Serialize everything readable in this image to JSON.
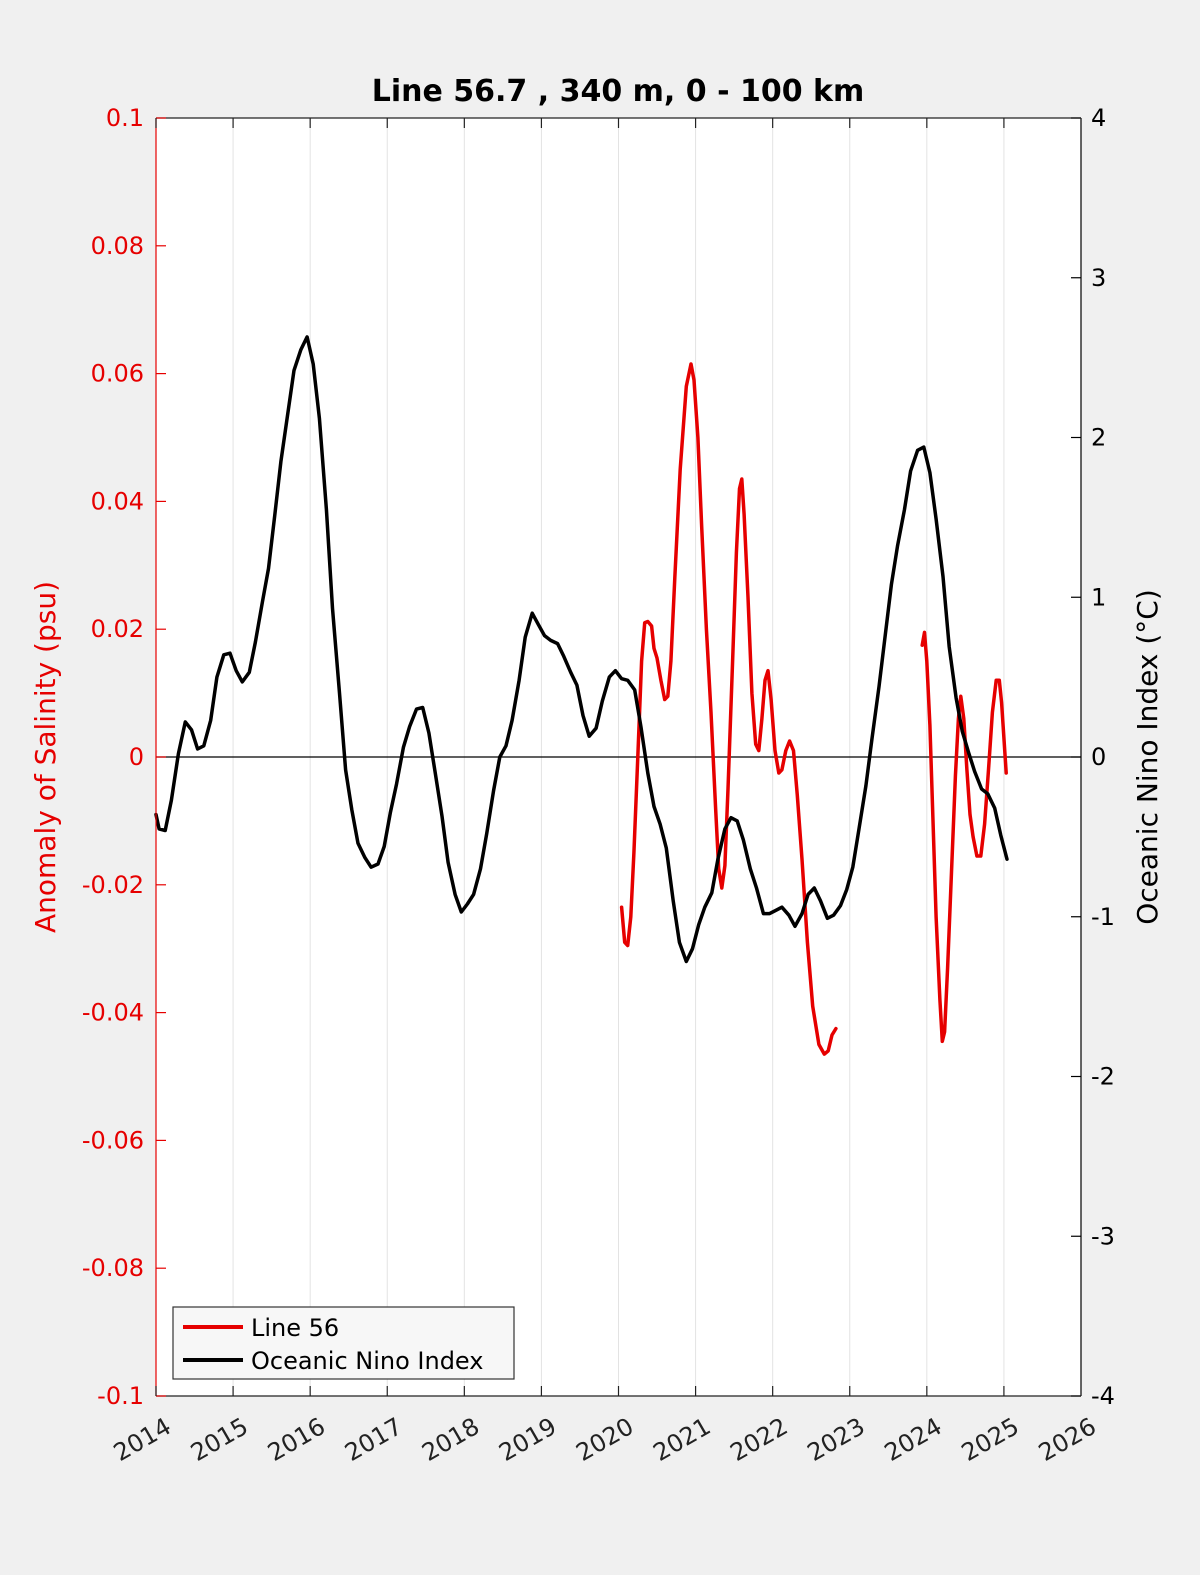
{
  "chart_data": {
    "type": "line",
    "title": "Line 56.7 , 340 m, 0 - 100 km",
    "xlabel": "",
    "ylabel": "Anomaly of Salinity (psu)",
    "y2label": "Oceanic Nino Index (°C)",
    "xlim": [
      2014,
      2026
    ],
    "ylim": [
      -0.1,
      0.1
    ],
    "y2lim": [
      -4,
      4
    ],
    "x_ticks": [
      "2014",
      "2015",
      "2016",
      "2017",
      "2018",
      "2019",
      "2020",
      "2021",
      "2022",
      "2023",
      "2024",
      "2025",
      "2026"
    ],
    "y_ticks": [
      "-0.1",
      "-0.08",
      "-0.06",
      "-0.04",
      "-0.02",
      "0",
      "0.02",
      "0.04",
      "0.06",
      "0.08",
      "0.1"
    ],
    "y2_ticks": [
      "-4",
      "-3",
      "-2",
      "-1",
      "0",
      "1",
      "2",
      "3",
      "4"
    ],
    "grid": "vertical",
    "legend_position": "bottom-left",
    "colors": {
      "salinity": "#e60000",
      "oni": "#000000",
      "background": "#f0f0f0",
      "plot_bg": "#ffffff",
      "grid": "#e3e3e3"
    },
    "series": [
      {
        "name": "Line 56",
        "axis": "left",
        "segments": [
          [
            [
              2020.04,
              -0.0235
            ],
            [
              2020.08,
              -0.029
            ],
            [
              2020.12,
              -0.0295
            ],
            [
              2020.16,
              -0.025
            ],
            [
              2020.2,
              -0.015
            ],
            [
              2020.25,
              0.0
            ],
            [
              2020.3,
              0.015
            ],
            [
              2020.34,
              0.021
            ],
            [
              2020.38,
              0.0212
            ],
            [
              2020.43,
              0.0205
            ],
            [
              2020.46,
              0.017
            ],
            [
              2020.5,
              0.0155
            ],
            [
              2020.55,
              0.012
            ],
            [
              2020.6,
              0.009
            ],
            [
              2020.64,
              0.0095
            ],
            [
              2020.68,
              0.015
            ],
            [
              2020.73,
              0.028
            ],
            [
              2020.8,
              0.045
            ],
            [
              2020.88,
              0.058
            ],
            [
              2020.94,
              0.0615
            ],
            [
              2020.98,
              0.059
            ],
            [
              2021.03,
              0.05
            ],
            [
              2021.08,
              0.036
            ],
            [
              2021.14,
              0.02
            ],
            [
              2021.2,
              0.007
            ],
            [
              2021.26,
              -0.008
            ],
            [
              2021.3,
              -0.0175
            ],
            [
              2021.34,
              -0.0205
            ],
            [
              2021.38,
              -0.017
            ],
            [
              2021.42,
              -0.005
            ],
            [
              2021.48,
              0.015
            ],
            [
              2021.53,
              0.032
            ],
            [
              2021.57,
              0.042
            ],
            [
              2021.6,
              0.0435
            ],
            [
              2021.63,
              0.038
            ],
            [
              2021.68,
              0.025
            ],
            [
              2021.73,
              0.01
            ],
            [
              2021.78,
              0.002
            ],
            [
              2021.82,
              0.001
            ],
            [
              2021.86,
              0.006
            ],
            [
              2021.9,
              0.012
            ],
            [
              2021.94,
              0.0135
            ],
            [
              2021.98,
              0.009
            ],
            [
              2022.03,
              0.001
            ],
            [
              2022.08,
              -0.0025
            ],
            [
              2022.12,
              -0.002
            ],
            [
              2022.17,
              0.001
            ],
            [
              2022.22,
              0.0025
            ],
            [
              2022.27,
              0.001
            ],
            [
              2022.32,
              -0.006
            ],
            [
              2022.38,
              -0.016
            ],
            [
              2022.45,
              -0.029
            ],
            [
              2022.52,
              -0.039
            ],
            [
              2022.6,
              -0.045
            ],
            [
              2022.67,
              -0.0465
            ],
            [
              2022.72,
              -0.046
            ],
            [
              2022.77,
              -0.0435
            ],
            [
              2022.82,
              -0.0425
            ]
          ],
          [
            [
              2023.94,
              0.0175
            ],
            [
              2023.97,
              0.0195
            ],
            [
              2024.0,
              0.015
            ],
            [
              2024.04,
              0.005
            ],
            [
              2024.08,
              -0.01
            ],
            [
              2024.12,
              -0.025
            ],
            [
              2024.17,
              -0.038
            ],
            [
              2024.2,
              -0.0445
            ],
            [
              2024.23,
              -0.043
            ],
            [
              2024.27,
              -0.033
            ],
            [
              2024.32,
              -0.018
            ],
            [
              2024.37,
              -0.003
            ],
            [
              2024.41,
              0.006
            ],
            [
              2024.44,
              0.0095
            ],
            [
              2024.48,
              0.006
            ],
            [
              2024.52,
              -0.002
            ],
            [
              2024.56,
              -0.009
            ],
            [
              2024.6,
              -0.0125
            ],
            [
              2024.65,
              -0.0155
            ],
            [
              2024.7,
              -0.0155
            ],
            [
              2024.75,
              -0.0105
            ],
            [
              2024.8,
              -0.002
            ],
            [
              2024.85,
              0.007
            ],
            [
              2024.9,
              0.012
            ],
            [
              2024.94,
              0.012
            ],
            [
              2024.97,
              0.0085
            ],
            [
              2025.0,
              0.003
            ],
            [
              2025.03,
              -0.0025
            ]
          ]
        ]
      },
      {
        "name": "Oceanic Nino Index",
        "axis": "right",
        "points": [
          [
            2014.0,
            -0.36
          ],
          [
            2014.04,
            -0.45
          ],
          [
            2014.12,
            -0.46
          ],
          [
            2014.2,
            -0.27
          ],
          [
            2014.29,
            0.02
          ],
          [
            2014.38,
            0.22
          ],
          [
            2014.46,
            0.17
          ],
          [
            2014.54,
            0.05
          ],
          [
            2014.62,
            0.07
          ],
          [
            2014.71,
            0.23
          ],
          [
            2014.79,
            0.5
          ],
          [
            2014.88,
            0.64
          ],
          [
            2014.96,
            0.65
          ],
          [
            2015.04,
            0.54
          ],
          [
            2015.12,
            0.47
          ],
          [
            2015.21,
            0.53
          ],
          [
            2015.29,
            0.72
          ],
          [
            2015.38,
            0.97
          ],
          [
            2015.46,
            1.18
          ],
          [
            2015.54,
            1.51
          ],
          [
            2015.62,
            1.85
          ],
          [
            2015.71,
            2.15
          ],
          [
            2015.79,
            2.42
          ],
          [
            2015.88,
            2.55
          ],
          [
            2015.96,
            2.63
          ],
          [
            2016.04,
            2.46
          ],
          [
            2016.12,
            2.12
          ],
          [
            2016.21,
            1.55
          ],
          [
            2016.29,
            0.93
          ],
          [
            2016.38,
            0.4
          ],
          [
            2016.46,
            -0.08
          ],
          [
            2016.54,
            -0.33
          ],
          [
            2016.62,
            -0.54
          ],
          [
            2016.71,
            -0.63
          ],
          [
            2016.79,
            -0.69
          ],
          [
            2016.88,
            -0.67
          ],
          [
            2016.96,
            -0.56
          ],
          [
            2017.04,
            -0.35
          ],
          [
            2017.12,
            -0.17
          ],
          [
            2017.21,
            0.06
          ],
          [
            2017.29,
            0.19
          ],
          [
            2017.38,
            0.3
          ],
          [
            2017.46,
            0.31
          ],
          [
            2017.54,
            0.15
          ],
          [
            2017.62,
            -0.09
          ],
          [
            2017.71,
            -0.37
          ],
          [
            2017.79,
            -0.66
          ],
          [
            2017.88,
            -0.86
          ],
          [
            2017.96,
            -0.97
          ],
          [
            2018.04,
            -0.92
          ],
          [
            2018.12,
            -0.86
          ],
          [
            2018.21,
            -0.7
          ],
          [
            2018.29,
            -0.48
          ],
          [
            2018.38,
            -0.21
          ],
          [
            2018.46,
            0.0
          ],
          [
            2018.54,
            0.07
          ],
          [
            2018.62,
            0.23
          ],
          [
            2018.71,
            0.48
          ],
          [
            2018.79,
            0.75
          ],
          [
            2018.88,
            0.9
          ],
          [
            2018.96,
            0.83
          ],
          [
            2019.04,
            0.76
          ],
          [
            2019.12,
            0.73
          ],
          [
            2019.21,
            0.71
          ],
          [
            2019.29,
            0.63
          ],
          [
            2019.38,
            0.53
          ],
          [
            2019.46,
            0.45
          ],
          [
            2019.54,
            0.26
          ],
          [
            2019.62,
            0.13
          ],
          [
            2019.71,
            0.18
          ],
          [
            2019.79,
            0.35
          ],
          [
            2019.88,
            0.5
          ],
          [
            2019.96,
            0.54
          ],
          [
            2020.04,
            0.49
          ],
          [
            2020.12,
            0.48
          ],
          [
            2020.21,
            0.42
          ],
          [
            2020.29,
            0.19
          ],
          [
            2020.38,
            -0.1
          ],
          [
            2020.46,
            -0.31
          ],
          [
            2020.54,
            -0.42
          ],
          [
            2020.62,
            -0.57
          ],
          [
            2020.71,
            -0.9
          ],
          [
            2020.79,
            -1.16
          ],
          [
            2020.88,
            -1.28
          ],
          [
            2020.96,
            -1.2
          ],
          [
            2021.04,
            -1.05
          ],
          [
            2021.12,
            -0.94
          ],
          [
            2021.21,
            -0.85
          ],
          [
            2021.29,
            -0.64
          ],
          [
            2021.38,
            -0.45
          ],
          [
            2021.46,
            -0.38
          ],
          [
            2021.54,
            -0.4
          ],
          [
            2021.62,
            -0.52
          ],
          [
            2021.71,
            -0.7
          ],
          [
            2021.79,
            -0.82
          ],
          [
            2021.88,
            -0.98
          ],
          [
            2021.96,
            -0.98
          ],
          [
            2022.04,
            -0.96
          ],
          [
            2022.12,
            -0.94
          ],
          [
            2022.21,
            -0.99
          ],
          [
            2022.29,
            -1.06
          ],
          [
            2022.38,
            -0.98
          ],
          [
            2022.46,
            -0.86
          ],
          [
            2022.54,
            -0.82
          ],
          [
            2022.62,
            -0.9
          ],
          [
            2022.71,
            -1.01
          ],
          [
            2022.79,
            -0.99
          ],
          [
            2022.88,
            -0.93
          ],
          [
            2022.96,
            -0.83
          ],
          [
            2023.04,
            -0.69
          ],
          [
            2023.12,
            -0.45
          ],
          [
            2023.21,
            -0.18
          ],
          [
            2023.29,
            0.12
          ],
          [
            2023.38,
            0.44
          ],
          [
            2023.46,
            0.76
          ],
          [
            2023.54,
            1.08
          ],
          [
            2023.62,
            1.32
          ],
          [
            2023.71,
            1.55
          ],
          [
            2023.79,
            1.79
          ],
          [
            2023.88,
            1.92
          ],
          [
            2023.96,
            1.94
          ],
          [
            2024.04,
            1.78
          ],
          [
            2024.12,
            1.49
          ],
          [
            2024.21,
            1.13
          ],
          [
            2024.29,
            0.69
          ],
          [
            2024.38,
            0.37
          ],
          [
            2024.46,
            0.16
          ],
          [
            2024.54,
            0.03
          ],
          [
            2024.62,
            -0.09
          ],
          [
            2024.71,
            -0.2
          ],
          [
            2024.79,
            -0.23
          ],
          [
            2024.88,
            -0.32
          ],
          [
            2024.96,
            -0.49
          ],
          [
            2025.04,
            -0.64
          ]
        ]
      }
    ]
  }
}
